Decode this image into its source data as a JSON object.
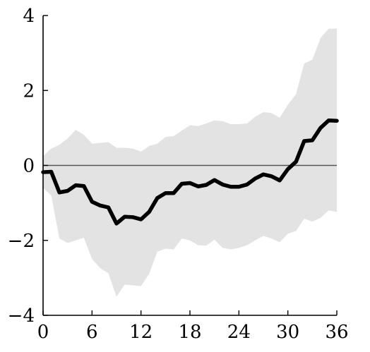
{
  "chart_data": {
    "type": "line",
    "title": "",
    "xlabel": "",
    "ylabel": "",
    "xlim": [
      0,
      36
    ],
    "ylim": [
      -4,
      4
    ],
    "xticks": [
      0,
      6,
      12,
      18,
      24,
      30,
      36
    ],
    "yticks": [
      -4,
      -2,
      0,
      2,
      4
    ],
    "xtick_labels": [
      "0",
      "6",
      "12",
      "18",
      "24",
      "30",
      "36"
    ],
    "ytick_labels": [
      "−4",
      "−2",
      "0",
      "2",
      "4"
    ],
    "zero_line": true,
    "grid": false,
    "colors": {
      "line": "#000000",
      "band": "#e3e3e3",
      "zero_line": "#555555"
    },
    "x": [
      0,
      1,
      2,
      3,
      4,
      5,
      6,
      7,
      8,
      9,
      10,
      11,
      12,
      13,
      14,
      15,
      16,
      17,
      18,
      19,
      20,
      21,
      22,
      23,
      24,
      25,
      26,
      27,
      28,
      29,
      30,
      31,
      32,
      33,
      34,
      35,
      36
    ],
    "series": [
      {
        "values": [
          -0.18,
          -0.17,
          -0.72,
          -0.68,
          -0.53,
          -0.55,
          -0.97,
          -1.07,
          -1.12,
          -1.55,
          -1.37,
          -1.38,
          -1.44,
          -1.24,
          -0.87,
          -0.74,
          -0.74,
          -0.49,
          -0.47,
          -0.56,
          -0.52,
          -0.39,
          -0.51,
          -0.57,
          -0.57,
          -0.51,
          -0.35,
          -0.24,
          -0.29,
          -0.4,
          -0.1,
          0.1,
          0.65,
          0.67,
          1.0,
          1.2,
          1.19
        ],
        "lower": [
          -0.6,
          -0.8,
          -1.95,
          -2.07,
          -2.0,
          -1.93,
          -2.5,
          -2.74,
          -2.88,
          -3.5,
          -3.18,
          -3.2,
          -3.22,
          -2.9,
          -2.3,
          -2.22,
          -2.24,
          -1.95,
          -2.0,
          -2.13,
          -2.14,
          -1.98,
          -2.2,
          -2.24,
          -2.2,
          -2.13,
          -2.0,
          -1.88,
          -1.95,
          -2.05,
          -1.82,
          -1.75,
          -1.42,
          -1.5,
          -1.4,
          -1.2,
          -1.24
        ],
        "upper": [
          0.25,
          0.45,
          0.55,
          0.72,
          0.95,
          0.82,
          0.58,
          0.6,
          0.62,
          0.47,
          0.47,
          0.45,
          0.37,
          0.52,
          0.58,
          0.76,
          0.78,
          0.93,
          1.07,
          1.05,
          1.12,
          1.2,
          1.18,
          1.1,
          1.1,
          1.12,
          1.3,
          1.42,
          1.4,
          1.27,
          1.62,
          1.9,
          2.72,
          2.82,
          3.4,
          3.65,
          3.65
        ]
      }
    ]
  }
}
